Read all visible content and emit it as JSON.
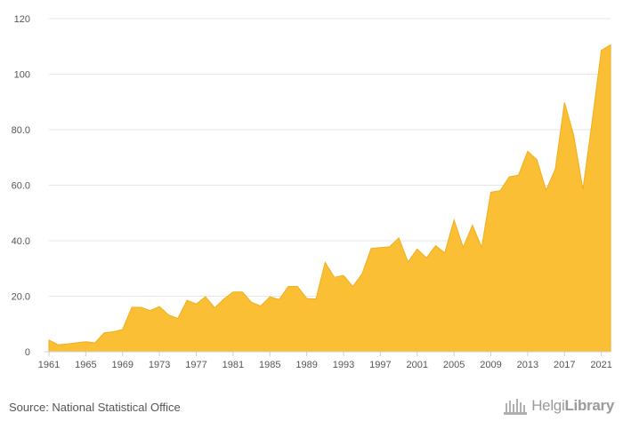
{
  "chart_data": {
    "type": "area",
    "x": [
      1961,
      1962,
      1963,
      1964,
      1965,
      1966,
      1967,
      1968,
      1969,
      1970,
      1971,
      1972,
      1973,
      1974,
      1975,
      1976,
      1977,
      1978,
      1979,
      1980,
      1981,
      1982,
      1983,
      1984,
      1985,
      1986,
      1987,
      1988,
      1989,
      1990,
      1991,
      1992,
      1993,
      1994,
      1995,
      1996,
      1997,
      1998,
      1999,
      2000,
      2001,
      2002,
      2003,
      2004,
      2005,
      2006,
      2007,
      2008,
      2009,
      2010,
      2011,
      2012,
      2013,
      2014,
      2015,
      2016,
      2017,
      2018,
      2019,
      2020,
      2021,
      2022
    ],
    "series": [
      {
        "values": [
          4.2,
          2.5,
          2.8,
          3.2,
          3.6,
          3.2,
          6.8,
          7.2,
          8.0,
          16.0,
          16.0,
          14.8,
          16.3,
          13.2,
          12.0,
          18.5,
          17.2,
          19.8,
          15.8,
          19.0,
          21.5,
          21.5,
          17.8,
          16.5,
          19.8,
          18.8,
          23.5,
          23.5,
          19.2,
          19.0,
          32.2,
          26.8,
          27.5,
          23.5,
          28.0,
          37.2,
          37.5,
          37.8,
          41.0,
          32.4,
          37.0,
          33.8,
          38.2,
          35.6,
          47.5,
          37.6,
          45.6,
          37.6,
          57.5,
          58.0,
          63.0,
          63.6,
          72.2,
          69.2,
          58.2,
          65.8,
          89.8,
          78.0,
          58.5,
          83.0,
          108.6,
          110.6
        ]
      }
    ],
    "y_ticks": [
      "0",
      "20.0",
      "40.0",
      "60.0",
      "80.0",
      "100",
      "120"
    ],
    "y_tick_values": [
      0,
      20,
      40,
      60,
      80,
      100,
      120
    ],
    "x_ticks": [
      1961,
      1965,
      1969,
      1973,
      1977,
      1981,
      1985,
      1989,
      1993,
      1997,
      2001,
      2005,
      2009,
      2013,
      2017,
      2021
    ],
    "ylim": [
      0,
      120
    ],
    "xlim": [
      1961,
      2022
    ],
    "grid": true,
    "fill_color": "#fbbf35",
    "title": "",
    "xlabel": "",
    "ylabel": ""
  },
  "footer": {
    "source": "Source: National Statistical Office",
    "logo_light": "Helgi",
    "logo_bold": "Library"
  }
}
